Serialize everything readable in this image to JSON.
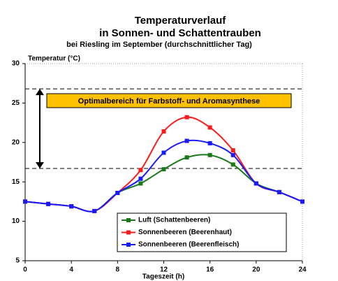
{
  "chart_data": {
    "type": "line",
    "title": [
      "Temperaturverlauf",
      "in Sonnen- und Schattentrauben"
    ],
    "subtitle": "bei Riesling im September (durchschnittlicher Tag)",
    "y_label": "Temperatur (°C)",
    "x_label": "Tageszeit (h)",
    "annotation": "Optimalbereich für Farbstoff- und Aromasynthese",
    "reference_lines": [
      26.8,
      16.7
    ],
    "x": [
      0,
      2,
      4,
      6,
      8,
      10,
      12,
      14,
      16,
      18,
      20,
      22,
      24
    ],
    "series": [
      {
        "name": "Luft (Schattenbeeren)",
        "color": "#1a7a1a",
        "values": [
          12.5,
          12.2,
          11.9,
          11.3,
          13.6,
          14.8,
          16.6,
          18.1,
          18.4,
          17.2,
          14.8,
          13.7,
          12.5
        ]
      },
      {
        "name": "Sonnenbeeren (Beerenhaut)",
        "color": "#ff1a1a",
        "values": [
          12.5,
          12.2,
          11.9,
          11.3,
          13.6,
          16.5,
          21.4,
          23.2,
          21.9,
          19.0,
          14.8,
          13.7,
          12.5
        ]
      },
      {
        "name": "Sonnenbeeren (Beerenfleisch)",
        "color": "#1a1aff",
        "values": [
          12.5,
          12.2,
          11.9,
          11.3,
          13.6,
          15.4,
          18.7,
          20.2,
          19.9,
          18.4,
          14.8,
          13.7,
          12.5
        ]
      }
    ],
    "xlim": [
      0,
      24
    ],
    "xticks": [
      0,
      4,
      8,
      12,
      16,
      20,
      24
    ],
    "ylim": [
      5,
      30
    ],
    "yticks": [
      5,
      10,
      15,
      20,
      25,
      30
    ],
    "legend": "bottom-right"
  }
}
